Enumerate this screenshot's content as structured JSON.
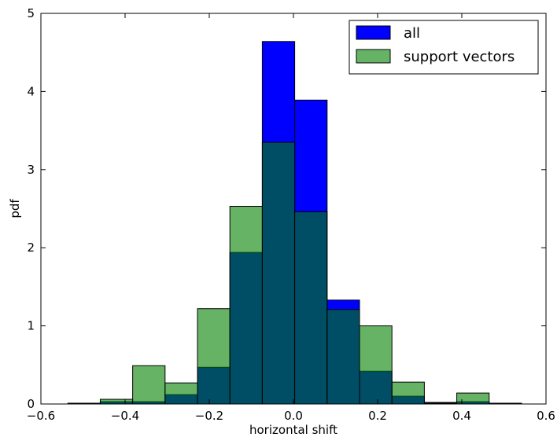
{
  "chart_data": {
    "type": "bar",
    "title": "",
    "xlabel": "horizontal shift",
    "ylabel": "pdf",
    "xlim": [
      -0.6,
      0.6
    ],
    "ylim": [
      0,
      5
    ],
    "xticks": [
      -0.6,
      -0.4,
      -0.2,
      0.0,
      0.2,
      0.4,
      0.6
    ],
    "xtick_labels": [
      "−0.6",
      "−0.4",
      "−0.2",
      "0.0",
      "0.2",
      "0.4",
      "0.6"
    ],
    "yticks": [
      0,
      1,
      2,
      3,
      4,
      5
    ],
    "ytick_labels": [
      "0",
      "1",
      "2",
      "3",
      "4",
      "5"
    ],
    "grid": false,
    "legend_position": "top-right",
    "series": [
      {
        "name": "all",
        "color": "#0000ff",
        "opacity": 1,
        "edge_color": "#000000",
        "bins": [
          [
            -0.536,
            -0.459,
            0.01
          ],
          [
            -0.459,
            -0.382,
            0.03
          ],
          [
            -0.382,
            -0.305,
            0.03
          ],
          [
            -0.305,
            -0.228,
            0.12
          ],
          [
            -0.228,
            -0.151,
            0.47
          ],
          [
            -0.151,
            -0.074,
            1.94
          ],
          [
            -0.074,
            0.003,
            4.64
          ],
          [
            0.003,
            0.08,
            3.89
          ],
          [
            0.08,
            0.157,
            1.33
          ],
          [
            0.157,
            0.234,
            0.42
          ],
          [
            0.234,
            0.311,
            0.1
          ],
          [
            0.311,
            0.388,
            0.02
          ],
          [
            0.388,
            0.465,
            0.03
          ],
          [
            0.465,
            0.542,
            0.01
          ]
        ]
      },
      {
        "name": "support vectors",
        "color": "#008000",
        "opacity": 0.6,
        "edge_color": "#000000",
        "bins": [
          [
            -0.459,
            -0.382,
            0.06
          ],
          [
            -0.382,
            -0.305,
            0.49
          ],
          [
            -0.305,
            -0.228,
            0.27
          ],
          [
            -0.228,
            -0.151,
            1.22
          ],
          [
            -0.151,
            -0.074,
            2.53
          ],
          [
            -0.074,
            0.003,
            3.35
          ],
          [
            0.003,
            0.08,
            2.46
          ],
          [
            0.08,
            0.157,
            1.21
          ],
          [
            0.157,
            0.234,
            1.0
          ],
          [
            0.234,
            0.311,
            0.28
          ],
          [
            0.311,
            0.388,
            0.01
          ],
          [
            0.388,
            0.465,
            0.14
          ]
        ]
      }
    ]
  }
}
